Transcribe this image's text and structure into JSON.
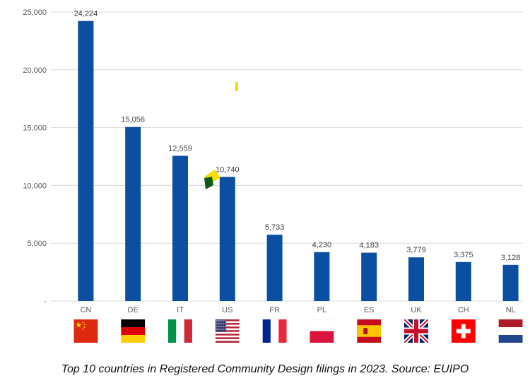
{
  "chart_data": {
    "type": "bar",
    "categories": [
      "CN",
      "DE",
      "IT",
      "US",
      "FR",
      "PL",
      "ES",
      "UK",
      "CH",
      "NL"
    ],
    "values": [
      24224,
      15056,
      12559,
      10740,
      5733,
      4230,
      4183,
      3779,
      3375,
      3128
    ],
    "data_labels": [
      "24,224",
      "15,056",
      "12,559",
      "10,740",
      "5,733",
      "4,230",
      "4,183",
      "3,779",
      "3,375",
      "3,128"
    ],
    "ylim": [
      0,
      25000
    ],
    "yticks": [
      0,
      5000,
      10000,
      15000,
      20000,
      25000
    ],
    "ytick_labels": [
      "-",
      "5,000",
      "10,000",
      "15,000",
      "20,000",
      "25,000"
    ],
    "grid": true,
    "bar_color": "#0b4ea2",
    "flags": [
      "china-flag",
      "germany-flag",
      "italy-flag",
      "usa-flag",
      "france-flag",
      "poland-flag",
      "spain-flag",
      "uk-flag",
      "switzerland-flag",
      "netherlands-flag"
    ]
  },
  "caption": "Top 10 countries in Registered Community Design filings in 2023. Source: EUIPO"
}
